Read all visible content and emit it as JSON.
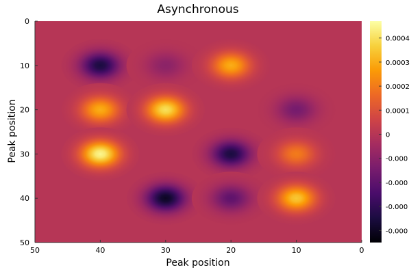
{
  "chart_data": {
    "type": "heatmap",
    "title": "Asynchronous",
    "xlabel": "Peak position",
    "ylabel": "Peak position",
    "xlim": [
      50,
      0
    ],
    "ylim": [
      0,
      50
    ],
    "x_ticks": [
      50,
      40,
      30,
      20,
      10,
      0
    ],
    "y_ticks": [
      0,
      10,
      20,
      30,
      40,
      50
    ],
    "background_value": 0,
    "peaks": [
      {
        "x": 40,
        "y": 10,
        "value": -0.00035
      },
      {
        "x": 30,
        "y": 10,
        "value": -0.0001
      },
      {
        "x": 20,
        "y": 10,
        "value": 0.0003
      },
      {
        "x": 40,
        "y": 20,
        "value": 0.0003
      },
      {
        "x": 30,
        "y": 20,
        "value": 0.0004
      },
      {
        "x": 10,
        "y": 20,
        "value": -0.00015
      },
      {
        "x": 40,
        "y": 30,
        "value": 0.00045
      },
      {
        "x": 20,
        "y": 30,
        "value": -0.00035
      },
      {
        "x": 10,
        "y": 30,
        "value": 0.0002
      },
      {
        "x": 30,
        "y": 40,
        "value": -0.0004
      },
      {
        "x": 20,
        "y": 40,
        "value": -0.0002
      },
      {
        "x": 10,
        "y": 40,
        "value": 0.00035
      }
    ],
    "peak_sigma": 2.0,
    "colorbar": {
      "colormap": "inferno",
      "range": [
        -0.00045,
        0.00047
      ],
      "tick_labels": [
        "0.0004",
        "0.0003",
        "0.0002",
        "0.0001",
        "0",
        "-0.000",
        "-0.000",
        "-0.000",
        "-0.000"
      ],
      "tick_values": [
        0.0004,
        0.0003,
        0.0002,
        0.0001,
        0,
        -0.0001,
        -0.0002,
        -0.0003,
        -0.0004
      ]
    },
    "colors": {
      "inferno": [
        "#000004",
        "#1b0c41",
        "#4a0c6b",
        "#781c6d",
        "#a52c60",
        "#cf4446",
        "#ed6925",
        "#fb9b06",
        "#f7d13d",
        "#fcffa4"
      ]
    }
  }
}
